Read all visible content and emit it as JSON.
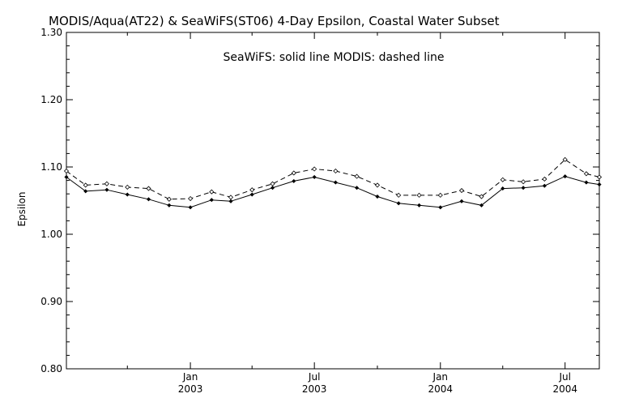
{
  "chart_data": {
    "type": "line",
    "title": "MODIS/Aqua(AT22) & SeaWiFS(ST06) 4-Day Epsilon, Coastal Water Subset",
    "annotation": "SeaWiFS: solid line   MODIS: dashed line",
    "ylabel": "Epsilon",
    "xlabel": "",
    "ylim": [
      0.8,
      1.3
    ],
    "xlim": [
      "2002-07-04",
      "2004-08-20"
    ],
    "yticks": [
      "0.80",
      "0.90",
      "1.00",
      "1.10",
      "1.20",
      "1.30"
    ],
    "xticks": [
      {
        "date": "2003-01-01",
        "month": "Jan",
        "year": "2003"
      },
      {
        "date": "2003-07-01",
        "month": "Jul",
        "year": "2003"
      },
      {
        "date": "2004-01-01",
        "month": "Jan",
        "year": "2004"
      },
      {
        "date": "2004-07-01",
        "month": "Jul",
        "year": "2004"
      }
    ],
    "minor_xticks": [
      "2002-10-01",
      "2003-04-01",
      "2003-10-01",
      "2004-04-01"
    ],
    "grid": false,
    "series": [
      {
        "name": "SeaWiFS",
        "style": "solid",
        "color": "#000000",
        "x": [
          "2002-07-04",
          "2002-08-01",
          "2002-09-01",
          "2002-10-01",
          "2002-11-01",
          "2002-12-01",
          "2003-01-01",
          "2003-02-01",
          "2003-03-01",
          "2003-04-01",
          "2003-05-01",
          "2003-06-01",
          "2003-07-01",
          "2003-08-01",
          "2003-09-01",
          "2003-10-01",
          "2003-11-01",
          "2003-12-01",
          "2004-01-01",
          "2004-02-01",
          "2004-03-01",
          "2004-04-01",
          "2004-05-01",
          "2004-06-01",
          "2004-07-01",
          "2004-08-01",
          "2004-08-20"
        ],
        "values": [
          1.085,
          1.064,
          1.066,
          1.059,
          1.052,
          1.043,
          1.04,
          1.051,
          1.049,
          1.059,
          1.069,
          1.079,
          1.085,
          1.077,
          1.069,
          1.056,
          1.046,
          1.043,
          1.04,
          1.049,
          1.043,
          1.068,
          1.069,
          1.072,
          1.086,
          1.077,
          1.074
        ]
      },
      {
        "name": "MODIS",
        "style": "dashed",
        "color": "#000000",
        "x": [
          "2002-07-04",
          "2002-08-01",
          "2002-09-01",
          "2002-10-01",
          "2002-11-01",
          "2002-12-01",
          "2003-01-01",
          "2003-02-01",
          "2003-03-01",
          "2003-04-01",
          "2003-05-01",
          "2003-06-01",
          "2003-07-01",
          "2003-08-01",
          "2003-09-01",
          "2003-10-01",
          "2003-11-01",
          "2003-12-01",
          "2004-01-01",
          "2004-02-01",
          "2004-03-01",
          "2004-04-01",
          "2004-05-01",
          "2004-06-01",
          "2004-07-01",
          "2004-08-01",
          "2004-08-20"
        ],
        "values": [
          1.094,
          1.073,
          1.075,
          1.07,
          1.068,
          1.052,
          1.053,
          1.063,
          1.055,
          1.066,
          1.075,
          1.091,
          1.097,
          1.094,
          1.086,
          1.073,
          1.058,
          1.058,
          1.058,
          1.065,
          1.056,
          1.081,
          1.078,
          1.082,
          1.111,
          1.09,
          1.085
        ]
      }
    ]
  }
}
